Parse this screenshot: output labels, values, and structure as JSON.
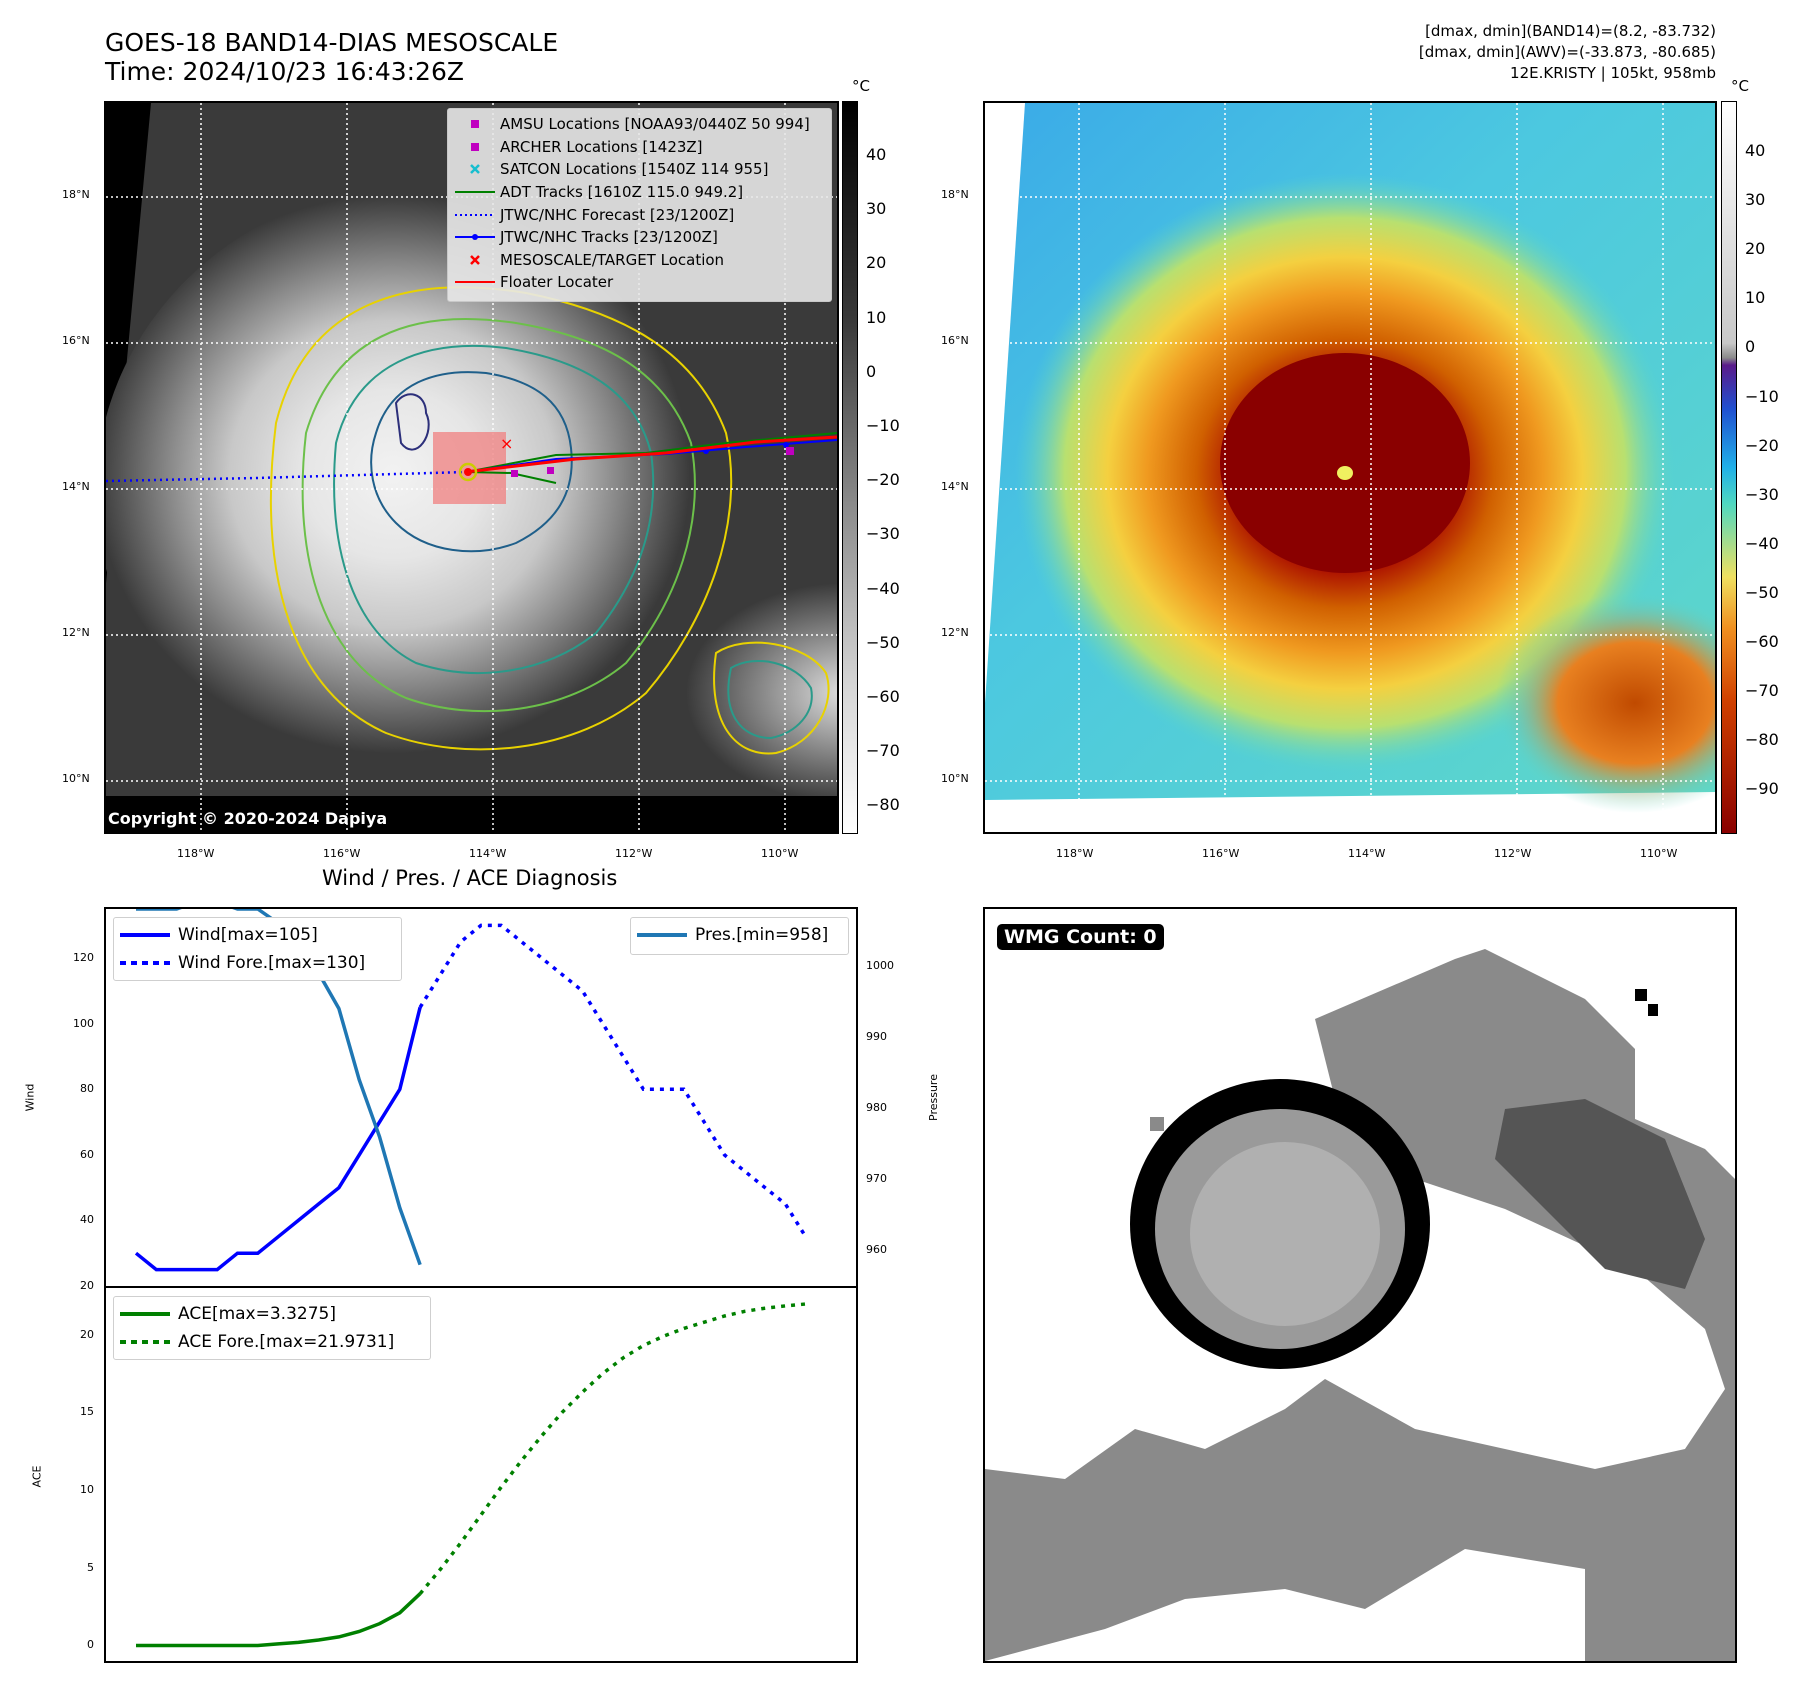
{
  "header": {
    "title_line1": "GOES-18 BAND14-DIAS MESOSCALE",
    "title_line2": "Time: 2024/10/23 16:43:26Z",
    "meta_line1": "[dmax, dmin](BAND14)=(8.2, -83.732)",
    "meta_line2": "[dmax, dmin](AWV)=(-33.873, -80.685)",
    "meta_line3": "12E.KRISTY | 105kt, 958mb"
  },
  "map": {
    "lat_labels": [
      "18°N",
      "16°N",
      "14°N",
      "12°N",
      "10°N"
    ],
    "lon_labels": [
      "118°W",
      "116°W",
      "114°W",
      "112°W",
      "110°W"
    ],
    "copyright": "Copyright © 2020-2024 Dapiya",
    "colorbar_unit": "°C",
    "gray_ticks": [
      "40",
      "30",
      "20",
      "10",
      "0",
      "−10",
      "−20",
      "−30",
      "−40",
      "−50",
      "−60",
      "−70",
      "−80"
    ],
    "color_ticks": [
      "40",
      "30",
      "20",
      "10",
      "0",
      "−10",
      "−20",
      "−30",
      "−40",
      "−50",
      "−60",
      "−70",
      "−80",
      "−90"
    ],
    "legend": [
      {
        "label": "AMSU Locations [NOAA93/0440Z 50 994]",
        "color": "#c000c0",
        "symbol": "square"
      },
      {
        "label": "ARCHER Locations [1423Z]",
        "color": "#c000c0",
        "symbol": "square"
      },
      {
        "label": "SATCON Locations [1540Z 114 955]",
        "color": "#17becf",
        "symbol": "x"
      },
      {
        "label": "ADT Tracks [1610Z 115.0 949.2]",
        "color": "#008000",
        "symbol": "line"
      },
      {
        "label": "JTWC/NHC Forecast [23/1200Z]",
        "color": "#0000ff",
        "symbol": "dotted"
      },
      {
        "label": "JTWC/NHC Tracks [23/1200Z]",
        "color": "#0000ff",
        "symbol": "line-dot"
      },
      {
        "label": "MESOSCALE/TARGET Location",
        "color": "#ff0000",
        "symbol": "x"
      },
      {
        "label": "Floater Locater",
        "color": "#ff0000",
        "symbol": "line"
      }
    ]
  },
  "diagnosis": {
    "title": "Wind / Pres. / ACE Diagnosis",
    "wind_ylabel": "Wind",
    "pres_ylabel": "Pressure",
    "ace_ylabel": "ACE",
    "wind_ticks": [
      "120",
      "100",
      "80",
      "60",
      "40",
      "20"
    ],
    "pres_ticks": [
      "1000",
      "990",
      "980",
      "970",
      "960"
    ],
    "ace_ticks": [
      "20",
      "15",
      "10",
      "5",
      "0"
    ],
    "legend_wind": "Wind[max=105]",
    "legend_wind_fore": "Wind Fore.[max=130]",
    "legend_pres": "Pres.[min=958]",
    "legend_ace": "ACE[max=3.3275]",
    "legend_ace_fore": "ACE Fore.[max=21.9731]"
  },
  "wmg": {
    "label": "WMG Count: 0"
  },
  "chart_data": [
    {
      "type": "line",
      "title": "Wind / Pres. / ACE Diagnosis",
      "ylabel": "Wind",
      "ylim": [
        20,
        135
      ],
      "series": [
        {
          "name": "Wind[max=105]",
          "x": [
            0,
            1,
            2,
            3,
            4,
            5,
            6,
            7,
            8,
            9,
            10,
            11,
            12,
            13,
            14
          ],
          "values": [
            30,
            25,
            25,
            25,
            25,
            30,
            30,
            35,
            40,
            45,
            50,
            60,
            70,
            80,
            105
          ]
        },
        {
          "name": "Wind Fore.[max=130]",
          "x": [
            14,
            15,
            16,
            17,
            18,
            19,
            20,
            21,
            22,
            23,
            24,
            25,
            26,
            27,
            28,
            29,
            30,
            31,
            32,
            33
          ],
          "values": [
            105,
            115,
            125,
            130,
            130,
            125,
            120,
            115,
            110,
            100,
            90,
            80,
            80,
            80,
            70,
            60,
            55,
            50,
            45,
            35
          ]
        }
      ]
    },
    {
      "type": "line",
      "ylabel": "Pressure",
      "ylim": [
        955,
        1008
      ],
      "series": [
        {
          "name": "Pres.[min=958]",
          "x": [
            0,
            1,
            2,
            3,
            4,
            5,
            6,
            7,
            8,
            9,
            10,
            11,
            12,
            13,
            14
          ],
          "values": [
            1008,
            1008,
            1008,
            1009,
            1009,
            1008,
            1008,
            1006,
            1003,
            999,
            994,
            984,
            976,
            966,
            958
          ]
        }
      ]
    },
    {
      "type": "line",
      "ylabel": "ACE",
      "ylim": [
        -1,
        23
      ],
      "series": [
        {
          "name": "ACE[max=3.3275]",
          "x": [
            0,
            1,
            2,
            3,
            4,
            5,
            6,
            7,
            8,
            9,
            10,
            11,
            12,
            13,
            14
          ],
          "values": [
            0,
            0,
            0,
            0,
            0,
            0,
            0,
            0.1,
            0.2,
            0.35,
            0.55,
            0.9,
            1.4,
            2.1,
            3.33
          ]
        },
        {
          "name": "ACE Fore.[max=21.9731]",
          "x": [
            14,
            15,
            16,
            17,
            18,
            19,
            20,
            21,
            22,
            23,
            24,
            25,
            26,
            27,
            28,
            29,
            30,
            31,
            32,
            33
          ],
          "values": [
            3.33,
            4.9,
            6.6,
            8.4,
            10.2,
            11.9,
            13.5,
            15,
            16.3,
            17.5,
            18.5,
            19.3,
            19.9,
            20.4,
            20.8,
            21.2,
            21.5,
            21.7,
            21.85,
            21.97
          ]
        }
      ]
    }
  ]
}
